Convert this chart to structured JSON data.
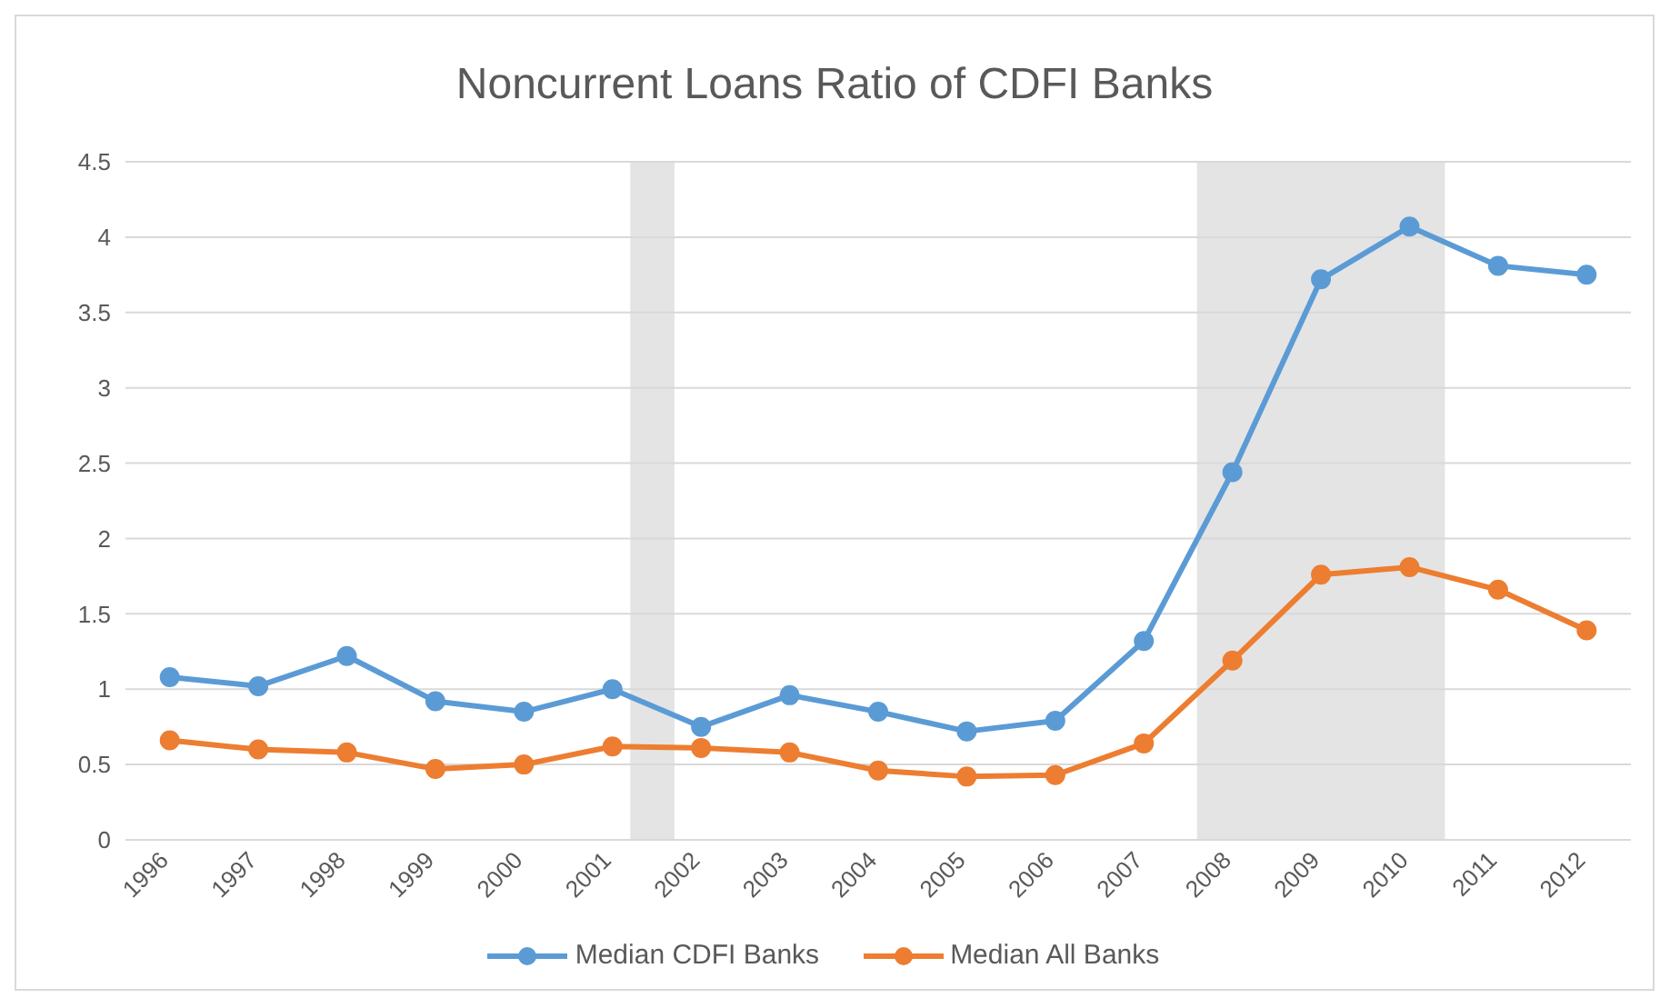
{
  "chart_data": {
    "type": "line",
    "title": "Noncurrent Loans Ratio of CDFI Banks",
    "x": [
      1996,
      1997,
      1998,
      1999,
      2000,
      2001,
      2002,
      2003,
      2004,
      2005,
      2006,
      2007,
      2008,
      2009,
      2010,
      2011,
      2012
    ],
    "series": [
      {
        "name": "Median CDFI Banks",
        "color": "#5b9bd5",
        "values": [
          1.08,
          1.02,
          1.22,
          0.92,
          0.85,
          1.0,
          0.75,
          0.96,
          0.85,
          0.72,
          0.79,
          1.32,
          2.44,
          3.72,
          4.07,
          3.81,
          3.75
        ]
      },
      {
        "name": "Median All Banks",
        "color": "#ed7d31",
        "values": [
          0.66,
          0.6,
          0.58,
          0.47,
          0.5,
          0.62,
          0.61,
          0.58,
          0.46,
          0.42,
          0.43,
          0.64,
          1.19,
          1.76,
          1.81,
          1.66,
          1.39
        ]
      }
    ],
    "xlim": [
      1995.5,
      2012.5
    ],
    "xticks": [
      1996,
      1997,
      1998,
      1999,
      2000,
      2001,
      2002,
      2003,
      2004,
      2005,
      2006,
      2007,
      2008,
      2009,
      2010,
      2011,
      2012
    ],
    "ylim": [
      0,
      4.5
    ],
    "yticks": [
      0,
      0.5,
      1,
      1.5,
      2,
      2.5,
      3,
      3.5,
      4,
      4.5
    ],
    "bands": [
      {
        "axis": "x",
        "from": 2001.2,
        "to": 2001.7,
        "color": "#d9d9d9"
      },
      {
        "axis": "x",
        "from": 2007.6,
        "to": 2010.4,
        "color": "#d9d9d9"
      }
    ],
    "grid": "y",
    "legend": "bottom",
    "marker": "circle",
    "line_style": "solid"
  }
}
